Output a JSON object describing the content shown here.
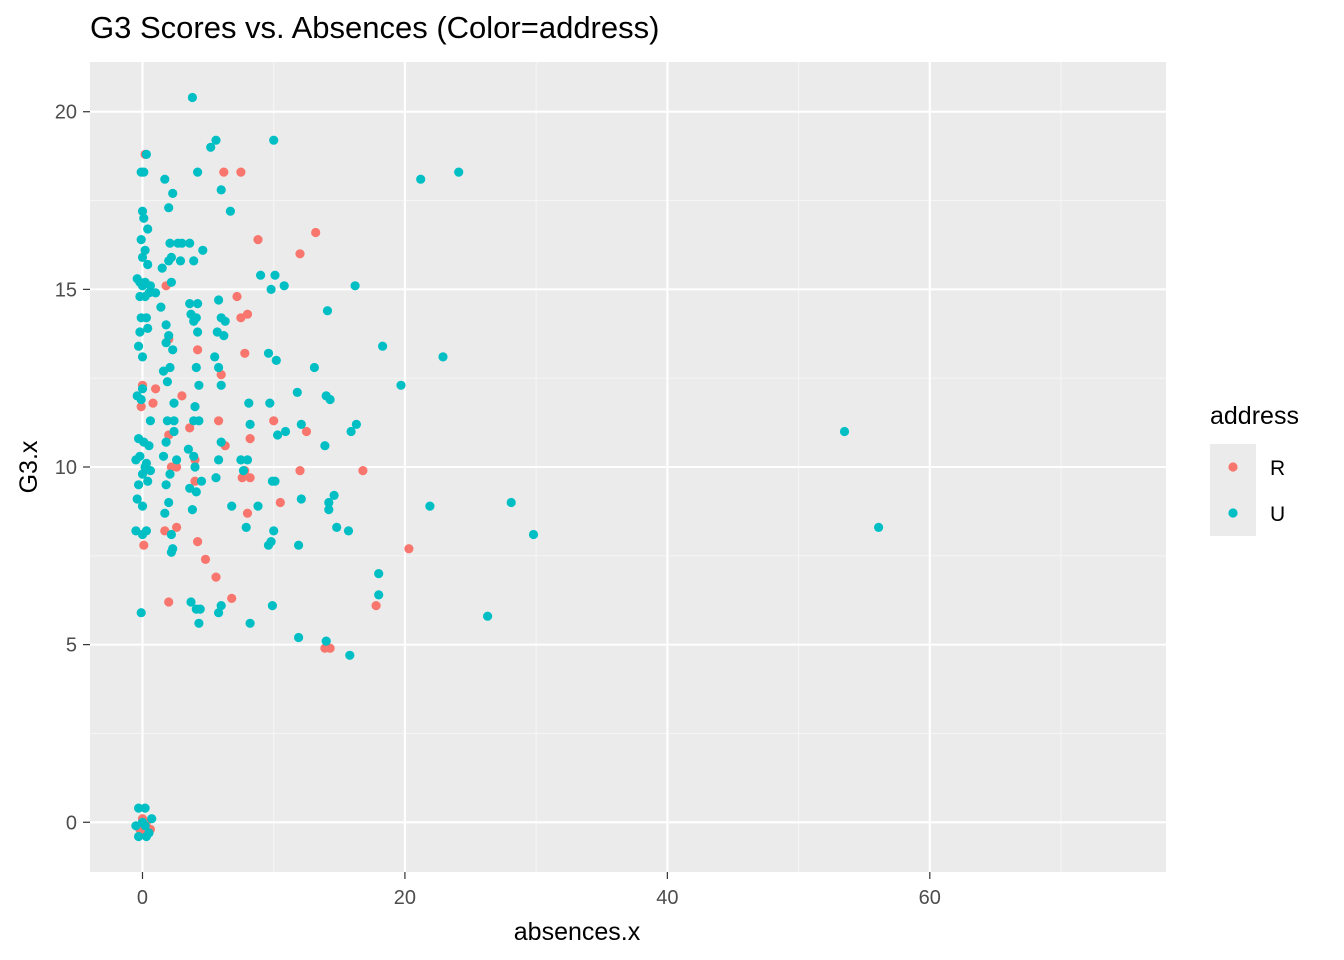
{
  "chart_data": {
    "type": "scatter",
    "title": "G3 Scores vs. Absences (Color=address)",
    "xlabel": "absences.x",
    "ylabel": "G3.x",
    "xlim": [
      -4,
      78
    ],
    "ylim": [
      -1.4,
      21.4
    ],
    "x_ticks": [
      0,
      20,
      40,
      60
    ],
    "y_ticks": [
      0,
      5,
      10,
      15,
      20
    ],
    "x_tick_labels": [
      "0",
      "20",
      "40",
      "60"
    ],
    "y_tick_labels": [
      "0",
      "5",
      "10",
      "15",
      "20"
    ],
    "grid": true,
    "legend": {
      "title": "address",
      "position": "right",
      "entries": [
        {
          "label": "R",
          "color": "#F8766D"
        },
        {
          "label": "U",
          "color": "#00BFC4"
        }
      ]
    },
    "series": [
      {
        "name": "R",
        "color": "#F8766D",
        "points": [
          [
            0.2,
            18.8
          ],
          [
            6.2,
            18.3
          ],
          [
            7.5,
            18.3
          ],
          [
            8.8,
            16.4
          ],
          [
            13.2,
            16.6
          ],
          [
            12.0,
            16.0
          ],
          [
            1.8,
            15.1
          ],
          [
            2.0,
            13.6
          ],
          [
            7.2,
            14.8
          ],
          [
            8.0,
            14.3
          ],
          [
            7.5,
            14.2
          ],
          [
            4.2,
            13.3
          ],
          [
            6.0,
            12.6
          ],
          [
            7.8,
            13.2
          ],
          [
            0.0,
            12.3
          ],
          [
            1.0,
            12.2
          ],
          [
            3.0,
            12.0
          ],
          [
            -0.1,
            11.7
          ],
          [
            0.8,
            11.8
          ],
          [
            3.6,
            11.1
          ],
          [
            5.8,
            11.3
          ],
          [
            10.0,
            11.3
          ],
          [
            12.5,
            11.0
          ],
          [
            2.0,
            10.9
          ],
          [
            6.3,
            10.6
          ],
          [
            8.2,
            10.8
          ],
          [
            4.0,
            10.2
          ],
          [
            2.2,
            10.0
          ],
          [
            2.6,
            10.0
          ],
          [
            7.8,
            9.9
          ],
          [
            8.2,
            9.7
          ],
          [
            12.0,
            9.9
          ],
          [
            16.8,
            9.9
          ],
          [
            4.0,
            9.6
          ],
          [
            7.6,
            9.7
          ],
          [
            10.5,
            9.0
          ],
          [
            8.0,
            8.7
          ],
          [
            2.6,
            8.3
          ],
          [
            1.7,
            8.2
          ],
          [
            0.1,
            7.8
          ],
          [
            4.2,
            7.9
          ],
          [
            4.8,
            7.4
          ],
          [
            20.3,
            7.7
          ],
          [
            5.6,
            6.9
          ],
          [
            6.8,
            6.3
          ],
          [
            2.0,
            6.2
          ],
          [
            17.8,
            6.1
          ],
          [
            13.9,
            4.9
          ],
          [
            14.3,
            4.9
          ],
          [
            0.0,
            0.1
          ],
          [
            0.3,
            0.0
          ],
          [
            0.6,
            -0.2
          ],
          [
            -0.2,
            -0.2
          ],
          [
            0.1,
            -0.3
          ]
        ]
      },
      {
        "name": "U",
        "color": "#00BFC4",
        "points": [
          [
            3.8,
            20.4
          ],
          [
            5.6,
            19.2
          ],
          [
            5.2,
            19.0
          ],
          [
            10.0,
            19.2
          ],
          [
            0.3,
            18.8
          ],
          [
            -0.1,
            18.3
          ],
          [
            0.1,
            18.3
          ],
          [
            1.7,
            18.1
          ],
          [
            4.2,
            18.3
          ],
          [
            21.2,
            18.1
          ],
          [
            24.1,
            18.3
          ],
          [
            6.0,
            17.8
          ],
          [
            2.3,
            17.7
          ],
          [
            2.0,
            17.3
          ],
          [
            0.0,
            17.2
          ],
          [
            0.1,
            17.0
          ],
          [
            6.7,
            17.2
          ],
          [
            0.4,
            16.7
          ],
          [
            -0.1,
            16.4
          ],
          [
            0.2,
            16.1
          ],
          [
            2.1,
            16.3
          ],
          [
            2.7,
            16.3
          ],
          [
            3.0,
            16.3
          ],
          [
            3.6,
            16.3
          ],
          [
            4.6,
            16.1
          ],
          [
            2.2,
            15.9
          ],
          [
            2.9,
            15.8
          ],
          [
            0.0,
            15.9
          ],
          [
            2.0,
            15.8
          ],
          [
            3.9,
            15.8
          ],
          [
            1.5,
            15.6
          ],
          [
            0.4,
            15.7
          ],
          [
            9.0,
            15.4
          ],
          [
            10.1,
            15.4
          ],
          [
            -0.4,
            15.3
          ],
          [
            -0.2,
            15.2
          ],
          [
            0.0,
            15.1
          ],
          [
            0.2,
            15.2
          ],
          [
            0.6,
            15.1
          ],
          [
            1.0,
            14.9
          ],
          [
            2.2,
            15.2
          ],
          [
            9.8,
            15.0
          ],
          [
            10.8,
            15.1
          ],
          [
            16.2,
            15.1
          ],
          [
            -0.2,
            14.8
          ],
          [
            0.2,
            14.8
          ],
          [
            0.5,
            14.9
          ],
          [
            3.6,
            14.6
          ],
          [
            4.2,
            14.6
          ],
          [
            5.8,
            14.7
          ],
          [
            14.1,
            14.4
          ],
          [
            -0.1,
            14.2
          ],
          [
            0.3,
            14.2
          ],
          [
            1.4,
            14.5
          ],
          [
            3.7,
            14.3
          ],
          [
            3.9,
            14.1
          ],
          [
            4.1,
            14.2
          ],
          [
            6.0,
            14.2
          ],
          [
            6.3,
            14.1
          ],
          [
            1.8,
            14.0
          ],
          [
            -0.2,
            13.8
          ],
          [
            0.4,
            13.9
          ],
          [
            2.0,
            13.7
          ],
          [
            4.2,
            13.8
          ],
          [
            5.7,
            13.8
          ],
          [
            6.2,
            13.7
          ],
          [
            18.3,
            13.4
          ],
          [
            22.9,
            13.1
          ],
          [
            -0.3,
            13.4
          ],
          [
            0.0,
            13.1
          ],
          [
            1.8,
            13.5
          ],
          [
            2.3,
            13.3
          ],
          [
            5.5,
            13.1
          ],
          [
            9.6,
            13.2
          ],
          [
            10.2,
            13.0
          ],
          [
            13.1,
            12.8
          ],
          [
            1.6,
            12.7
          ],
          [
            2.1,
            12.8
          ],
          [
            4.1,
            12.8
          ],
          [
            5.8,
            12.8
          ],
          [
            0.0,
            12.2
          ],
          [
            1.9,
            12.4
          ],
          [
            4.3,
            12.3
          ],
          [
            6.0,
            12.3
          ],
          [
            11.8,
            12.1
          ],
          [
            14.0,
            12.0
          ],
          [
            19.7,
            12.3
          ],
          [
            -0.4,
            12.0
          ],
          [
            -0.1,
            11.9
          ],
          [
            2.4,
            11.8
          ],
          [
            4.0,
            11.7
          ],
          [
            8.1,
            11.8
          ],
          [
            9.7,
            11.8
          ],
          [
            14.3,
            11.9
          ],
          [
            0.6,
            11.3
          ],
          [
            1.9,
            11.3
          ],
          [
            2.4,
            11.3
          ],
          [
            3.9,
            11.3
          ],
          [
            4.3,
            11.3
          ],
          [
            8.2,
            11.2
          ],
          [
            12.1,
            11.2
          ],
          [
            16.3,
            11.2
          ],
          [
            2.4,
            11.0
          ],
          [
            10.3,
            10.9
          ],
          [
            10.9,
            11.0
          ],
          [
            15.9,
            11.0
          ],
          [
            53.5,
            11.0
          ],
          [
            -0.3,
            10.8
          ],
          [
            0.1,
            10.7
          ],
          [
            0.5,
            10.6
          ],
          [
            1.8,
            10.7
          ],
          [
            3.5,
            10.5
          ],
          [
            6.0,
            10.7
          ],
          [
            13.9,
            10.6
          ],
          [
            -0.5,
            10.2
          ],
          [
            -0.2,
            10.3
          ],
          [
            0.2,
            10.0
          ],
          [
            0.6,
            9.9
          ],
          [
            1.6,
            10.3
          ],
          [
            2.6,
            10.2
          ],
          [
            3.9,
            10.3
          ],
          [
            5.8,
            10.2
          ],
          [
            7.5,
            10.2
          ],
          [
            8.0,
            10.2
          ],
          [
            0.0,
            9.8
          ],
          [
            0.3,
            10.1
          ],
          [
            2.1,
            9.8
          ],
          [
            4.0,
            10.0
          ],
          [
            5.6,
            9.7
          ],
          [
            7.7,
            9.9
          ],
          [
            9.9,
            9.6
          ],
          [
            14.6,
            9.2
          ],
          [
            -0.3,
            9.5
          ],
          [
            0.4,
            9.6
          ],
          [
            1.8,
            9.5
          ],
          [
            3.6,
            9.4
          ],
          [
            4.5,
            9.6
          ],
          [
            10.1,
            9.6
          ],
          [
            12.1,
            9.1
          ],
          [
            14.2,
            9.0
          ],
          [
            28.1,
            9.0
          ],
          [
            -0.4,
            9.1
          ],
          [
            0.0,
            8.9
          ],
          [
            2.0,
            9.0
          ],
          [
            3.8,
            8.8
          ],
          [
            6.8,
            8.9
          ],
          [
            8.8,
            8.9
          ],
          [
            14.2,
            8.8
          ],
          [
            21.9,
            8.9
          ],
          [
            1.7,
            8.7
          ],
          [
            4.1,
            9.3
          ],
          [
            -0.5,
            8.2
          ],
          [
            0.0,
            8.1
          ],
          [
            0.3,
            8.2
          ],
          [
            2.2,
            8.1
          ],
          [
            7.9,
            8.3
          ],
          [
            10.0,
            8.2
          ],
          [
            14.8,
            8.3
          ],
          [
            15.7,
            8.2
          ],
          [
            29.8,
            8.1
          ],
          [
            56.1,
            8.3
          ],
          [
            9.6,
            7.8
          ],
          [
            9.8,
            7.9
          ],
          [
            11.9,
            7.8
          ],
          [
            2.2,
            7.6
          ],
          [
            2.3,
            7.7
          ],
          [
            18.0,
            7.0
          ],
          [
            18.0,
            6.4
          ],
          [
            3.7,
            6.2
          ],
          [
            4.1,
            6.0
          ],
          [
            4.4,
            6.0
          ],
          [
            6.0,
            6.1
          ],
          [
            5.8,
            5.9
          ],
          [
            9.9,
            6.1
          ],
          [
            -0.1,
            5.9
          ],
          [
            4.3,
            5.6
          ],
          [
            8.2,
            5.6
          ],
          [
            26.3,
            5.8
          ],
          [
            11.9,
            5.2
          ],
          [
            14.0,
            5.1
          ],
          [
            15.8,
            4.7
          ],
          [
            -0.3,
            0.4
          ],
          [
            0.2,
            0.4
          ],
          [
            0.7,
            0.1
          ],
          [
            -0.5,
            -0.1
          ],
          [
            0.0,
            0.0
          ],
          [
            0.2,
            -0.1
          ],
          [
            0.5,
            -0.3
          ],
          [
            -0.3,
            -0.4
          ],
          [
            0.3,
            -0.4
          ]
        ]
      }
    ]
  }
}
